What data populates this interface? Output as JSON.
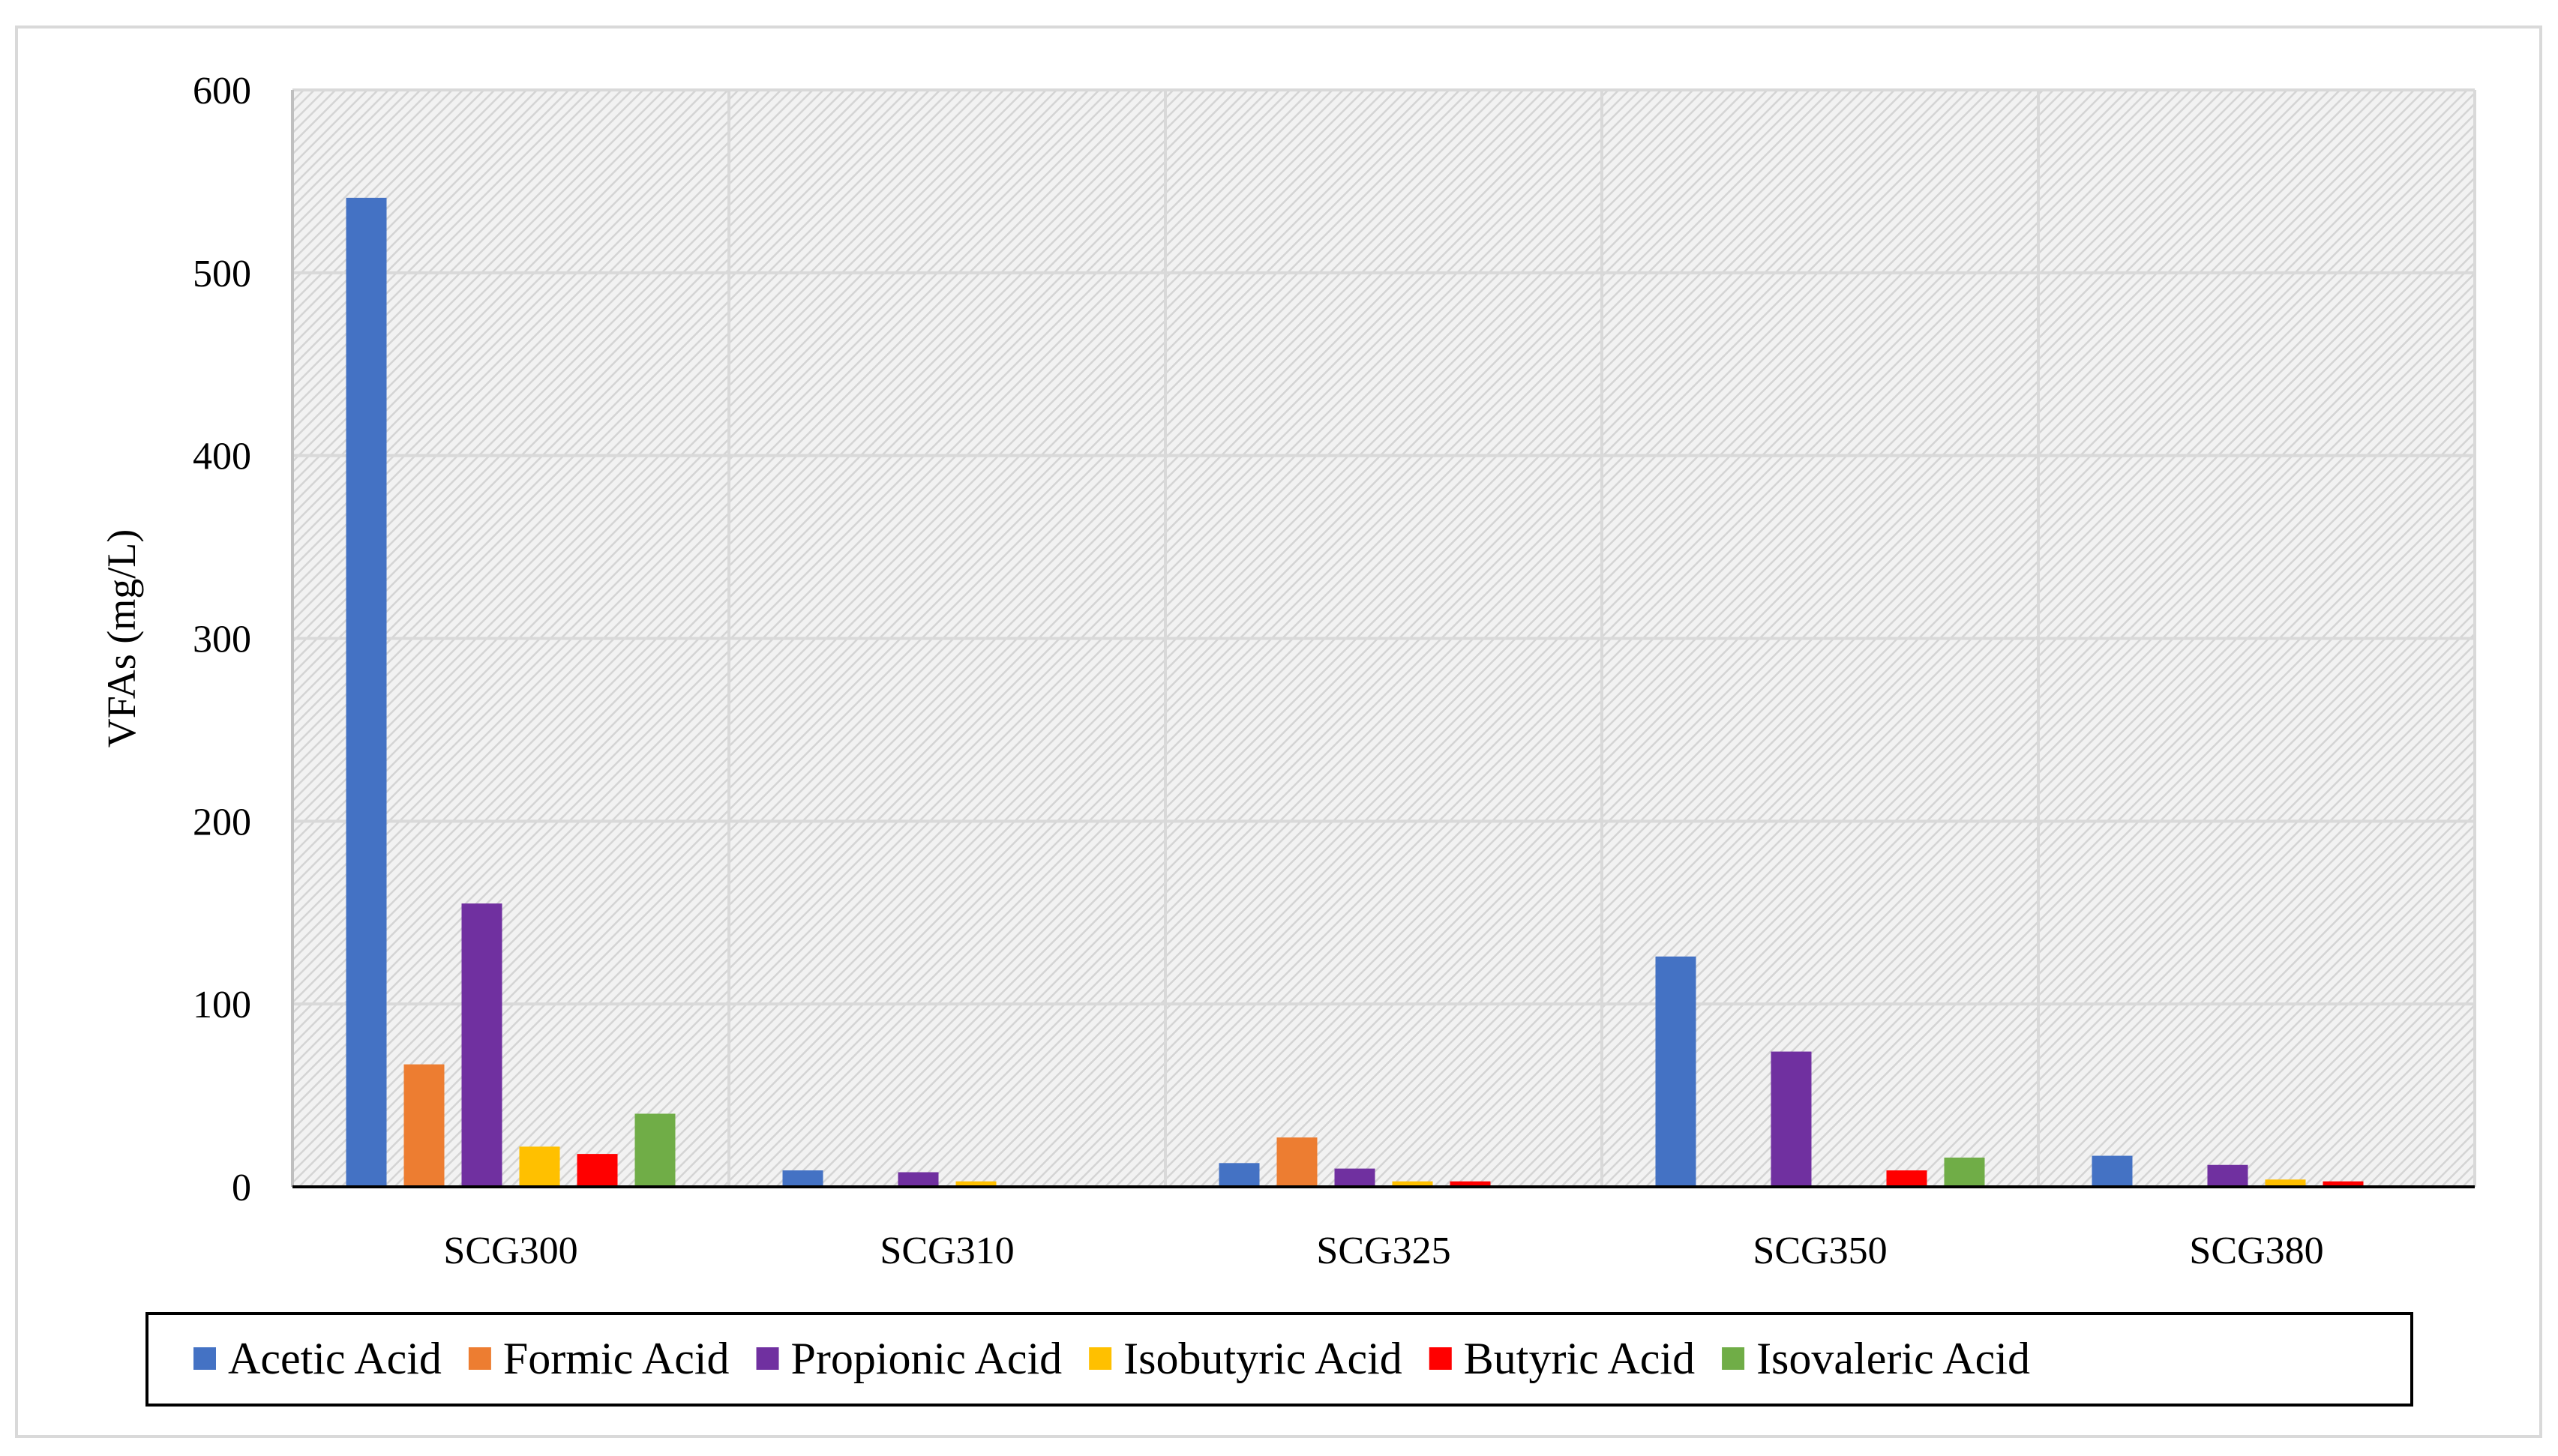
{
  "chart_data": {
    "type": "bar",
    "title": "",
    "xlabel": "",
    "ylabel": "VFAs (mg/L)",
    "ylim": [
      0,
      600
    ],
    "yticks": [
      0,
      100,
      200,
      300,
      400,
      500,
      600
    ],
    "grid": true,
    "legend_position": "bottom",
    "categories": [
      "SCG300",
      "SCG310",
      "SCG325",
      "SCG350",
      "SCG380"
    ],
    "series": [
      {
        "name": "Acetic Acid",
        "color": "#4472C4",
        "values": [
          541,
          9,
          13,
          126,
          17
        ]
      },
      {
        "name": "Formic Acid",
        "color": "#ED7D31",
        "values": [
          67,
          0,
          27,
          0,
          0
        ]
      },
      {
        "name": "Propionic Acid",
        "color": "#7030A0",
        "values": [
          155,
          8,
          10,
          74,
          12
        ]
      },
      {
        "name": "Isobutyric Acid",
        "color": "#FFC000",
        "values": [
          22,
          3,
          3,
          0,
          4
        ]
      },
      {
        "name": "Butyric Acid",
        "color": "#FF0000",
        "values": [
          18,
          0,
          3,
          9,
          3
        ]
      },
      {
        "name": "Isovaleric Acid",
        "color": "#70AD47",
        "values": [
          40,
          0,
          0,
          16,
          0
        ]
      }
    ]
  }
}
